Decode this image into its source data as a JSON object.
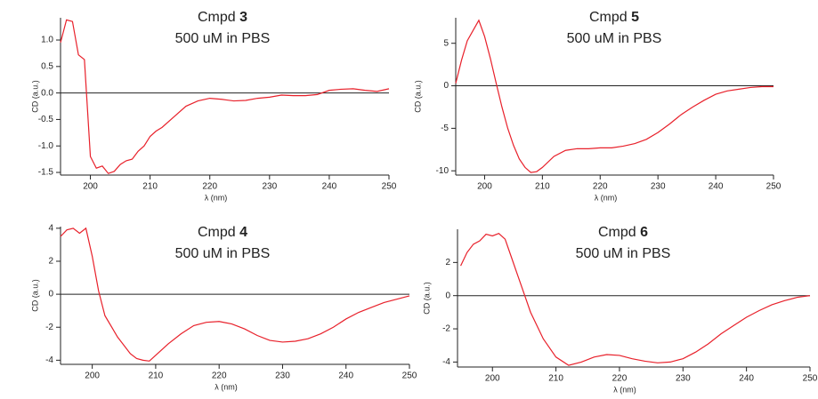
{
  "chart_data": [
    {
      "type": "line",
      "title": "Cmpd",
      "compound": "3",
      "subtitle": "500 uM in PBS",
      "x_label": "λ (nm)",
      "y_label": "CD (a.u.)",
      "xlim": [
        195,
        250
      ],
      "ylim": [
        -1.55,
        1.42
      ],
      "xticks": [
        200,
        210,
        220,
        230,
        240,
        250
      ],
      "yticks": [
        -1.5,
        {
          "value": -1,
          "label": "-1.0"
        },
        -0.5,
        {
          "value": 0,
          "label": "0.0"
        },
        0.5,
        {
          "value": 1,
          "label": "1.0"
        }
      ],
      "hline": 0,
      "x": [
        195,
        196,
        197,
        198,
        199,
        200,
        201,
        202,
        203,
        204,
        205,
        206,
        207,
        208,
        209,
        210,
        211,
        212,
        214,
        216,
        218,
        220,
        222,
        224,
        226,
        228,
        230,
        232,
        234,
        236,
        238,
        240,
        242,
        244,
        246,
        248,
        250
      ],
      "series": [
        {
          "color": "#e8202a",
          "values": [
            0.95,
            1.38,
            1.35,
            0.72,
            0.63,
            -1.2,
            -1.42,
            -1.38,
            -1.52,
            -1.48,
            -1.35,
            -1.28,
            -1.25,
            -1.1,
            -1.0,
            -0.82,
            -0.72,
            -0.65,
            -0.45,
            -0.25,
            -0.15,
            -0.1,
            -0.12,
            -0.15,
            -0.14,
            -0.1,
            -0.08,
            -0.04,
            -0.05,
            -0.05,
            -0.03,
            0.05,
            0.07,
            0.08,
            0.05,
            0.03,
            0.08
          ]
        }
      ]
    },
    {
      "type": "line",
      "title": "Cmpd",
      "compound": "5",
      "subtitle": "500 uM in PBS",
      "x_label": "λ (nm)",
      "y_label": "CD (a.u.)",
      "xlim": [
        195,
        250
      ],
      "ylim": [
        -10.5,
        8
      ],
      "xticks": [
        200,
        210,
        220,
        230,
        240,
        250
      ],
      "yticks": [
        -10,
        -5,
        0,
        5
      ],
      "hline": 0,
      "x": [
        195,
        196,
        197,
        198,
        199,
        200,
        201,
        202,
        203,
        204,
        205,
        206,
        207,
        208,
        209,
        210,
        212,
        214,
        216,
        218,
        220,
        222,
        224,
        226,
        228,
        230,
        232,
        234,
        236,
        238,
        240,
        242,
        244,
        246,
        248,
        250
      ],
      "series": [
        {
          "color": "#e8202a",
          "values": [
            0.3,
            3,
            5.3,
            6.5,
            7.7,
            5.8,
            3.2,
            0.3,
            -2.5,
            -5,
            -7,
            -8.6,
            -9.6,
            -10.2,
            -10.1,
            -9.6,
            -8.3,
            -7.6,
            -7.4,
            -7.4,
            -7.3,
            -7.3,
            -7.1,
            -6.8,
            -6.3,
            -5.5,
            -4.5,
            -3.4,
            -2.5,
            -1.7,
            -1.0,
            -0.6,
            -0.4,
            -0.2,
            -0.1,
            -0.1
          ]
        }
      ]
    },
    {
      "type": "line",
      "title": "Cmpd",
      "compound": "4",
      "subtitle": "500 uM in PBS",
      "x_label": "λ (nm)",
      "y_label": "CD (a.u.)",
      "xlim": [
        195,
        250
      ],
      "ylim": [
        -4.25,
        4.1
      ],
      "xticks": [
        200,
        210,
        220,
        230,
        240,
        250
      ],
      "yticks": [
        -4,
        -2,
        0,
        2,
        4
      ],
      "hline": 0,
      "x": [
        195,
        196,
        197,
        198,
        199,
        200,
        201,
        202,
        204,
        206,
        207,
        208,
        209,
        210,
        212,
        214,
        216,
        218,
        220,
        222,
        224,
        226,
        228,
        230,
        232,
        234,
        236,
        238,
        240,
        242,
        244,
        246,
        248,
        250
      ],
      "series": [
        {
          "color": "#e8202a",
          "values": [
            3.5,
            3.9,
            4.0,
            3.7,
            4.0,
            2.3,
            0.2,
            -1.3,
            -2.6,
            -3.6,
            -3.9,
            -4.0,
            -4.05,
            -3.7,
            -3.0,
            -2.4,
            -1.9,
            -1.7,
            -1.65,
            -1.8,
            -2.1,
            -2.5,
            -2.8,
            -2.9,
            -2.85,
            -2.7,
            -2.4,
            -2.0,
            -1.5,
            -1.1,
            -0.8,
            -0.5,
            -0.3,
            -0.1
          ]
        }
      ]
    },
    {
      "type": "line",
      "title": "Cmpd",
      "compound": "6",
      "subtitle": "500 uM in PBS",
      "x_label": "λ (nm)",
      "y_label": "CD (a.u.)",
      "xlim": [
        194.5,
        250
      ],
      "ylim": [
        -4.3,
        4
      ],
      "xticks": [
        200,
        210,
        220,
        230,
        240,
        250
      ],
      "yticks": [
        -4,
        -2,
        0,
        2
      ],
      "hline": 0,
      "x": [
        195,
        196,
        197,
        198,
        199,
        200,
        201,
        202,
        203,
        204,
        205,
        206,
        208,
        210,
        212,
        214,
        216,
        218,
        220,
        222,
        224,
        226,
        228,
        230,
        232,
        234,
        236,
        238,
        240,
        242,
        244,
        246,
        248,
        250
      ],
      "series": [
        {
          "color": "#e8202a",
          "values": [
            1.8,
            2.6,
            3.1,
            3.3,
            3.7,
            3.6,
            3.75,
            3.4,
            2.3,
            1.2,
            0.1,
            -1.0,
            -2.6,
            -3.7,
            -4.2,
            -4.0,
            -3.7,
            -3.55,
            -3.6,
            -3.8,
            -3.95,
            -4.05,
            -4.0,
            -3.8,
            -3.4,
            -2.9,
            -2.3,
            -1.8,
            -1.3,
            -0.9,
            -0.55,
            -0.3,
            -0.1,
            0.0
          ]
        }
      ]
    }
  ]
}
